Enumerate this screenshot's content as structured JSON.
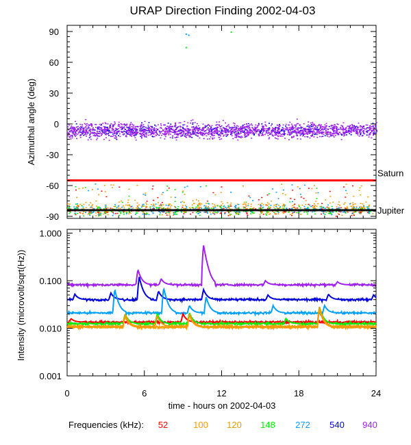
{
  "chart_data": [
    {
      "type": "scatter",
      "title": "URAP Direction Finding  2002-04-03",
      "xlabel": "",
      "ylabel": "Azimuthal angle (deg)",
      "xlim": [
        0,
        24
      ],
      "ylim": [
        -92,
        96
      ],
      "yticks": [
        90,
        60,
        30,
        0,
        -30,
        -60,
        -90
      ],
      "ytick_labels": [
        "90",
        "60",
        "30",
        "0",
        "-30",
        "-60",
        "-90"
      ],
      "reference_lines": [
        {
          "name": "Saturn",
          "value": -55,
          "color": "#ff0000"
        },
        {
          "name": "Jupiter",
          "value": -84,
          "color": "#000000"
        }
      ],
      "series": [
        {
          "name": "940",
          "description": "dense band around the center",
          "center": -6,
          "spread": 7,
          "color": "#a020f0"
        },
        {
          "name": "540",
          "description": "band around the center",
          "center": -6,
          "spread": 6,
          "color": "#0000dd"
        },
        {
          "name": "272",
          "description": "clusters near Jupiter line, spike near 9-10h",
          "center": -83,
          "spread": 5,
          "color": "#00a0ff"
        },
        {
          "name": "148",
          "description": "clusters near Jupiter line",
          "center": -84,
          "spread": 5,
          "color": "#00ee00"
        },
        {
          "name": "120",
          "description": "clusters near Jupiter line",
          "center": -82,
          "spread": 6,
          "color": "#e0a000"
        },
        {
          "name": "100",
          "description": "clusters near Jupiter line",
          "center": -82,
          "spread": 6,
          "color": "#ff9900"
        },
        {
          "name": "52",
          "description": "sparse near Jupiter line",
          "center": -84,
          "spread": 4,
          "color": "#ff0000"
        }
      ]
    },
    {
      "type": "line",
      "title": "",
      "xlabel": "time - hours on 2002-04-03",
      "ylabel": "Intensity (microvolt/sqrt(Hz))",
      "xscale": "linear",
      "yscale": "log",
      "xlim": [
        0,
        24
      ],
      "ylim": [
        0.001,
        1.2
      ],
      "xticks": [
        0,
        6,
        12,
        18,
        24
      ],
      "xtick_labels": [
        "0",
        "6",
        "12",
        "18",
        "24"
      ],
      "yticks": [
        1.0,
        0.1,
        0.01,
        0.001
      ],
      "ytick_labels": [
        "1.000",
        "0.100",
        "0.010",
        "0.001"
      ],
      "series": [
        {
          "name": "940",
          "baseline": 0.082,
          "color": "#a020f0",
          "bursts": [
            {
              "t": 5.5,
              "peak": 0.17
            },
            {
              "t": 7.3,
              "peak": 0.11
            },
            {
              "t": 10.6,
              "peak": 0.55
            },
            {
              "t": 15.4,
              "peak": 0.1
            },
            {
              "t": 21.0,
              "peak": 0.095
            }
          ]
        },
        {
          "name": "540",
          "baseline": 0.04,
          "color": "#0000dd",
          "bursts": [
            {
              "t": 0.6,
              "peak": 0.052
            },
            {
              "t": 3.4,
              "peak": 0.055
            },
            {
              "t": 5.6,
              "peak": 0.12
            },
            {
              "t": 7.1,
              "peak": 0.06
            },
            {
              "t": 10.6,
              "peak": 0.065
            },
            {
              "t": 15.6,
              "peak": 0.05
            },
            {
              "t": 20.3,
              "peak": 0.052
            },
            {
              "t": 23.8,
              "peak": 0.05
            }
          ]
        },
        {
          "name": "272",
          "baseline": 0.021,
          "color": "#00a0ff",
          "bursts": [
            {
              "t": 3.7,
              "peak": 0.065
            },
            {
              "t": 7.5,
              "peak": 0.07
            },
            {
              "t": 9.5,
              "peak": 0.03
            },
            {
              "t": 10.8,
              "peak": 0.045
            },
            {
              "t": 16.0,
              "peak": 0.03
            },
            {
              "t": 20.0,
              "peak": 0.03
            }
          ]
        },
        {
          "name": "52",
          "baseline": 0.0135,
          "color": "#ff0000",
          "bursts": [
            {
              "t": 0.3,
              "peak": 0.016
            },
            {
              "t": 9.0,
              "peak": 0.02
            }
          ]
        },
        {
          "name": "148",
          "baseline": 0.0125,
          "color": "#00ee00",
          "bursts": [
            {
              "t": 4.5,
              "peak": 0.02
            },
            {
              "t": 7.0,
              "peak": 0.02
            },
            {
              "t": 9.5,
              "peak": 0.021
            },
            {
              "t": 17.0,
              "peak": 0.016
            },
            {
              "t": 19.6,
              "peak": 0.028
            }
          ]
        },
        {
          "name": "120",
          "baseline": 0.011,
          "color": "#e0a000",
          "bursts": [
            {
              "t": 4.5,
              "peak": 0.02
            },
            {
              "t": 7.0,
              "peak": 0.018
            },
            {
              "t": 9.5,
              "peak": 0.02
            },
            {
              "t": 19.6,
              "peak": 0.028
            }
          ]
        },
        {
          "name": "100",
          "baseline": 0.0105,
          "color": "#ff9900",
          "bursts": [
            {
              "t": 4.5,
              "peak": 0.018
            },
            {
              "t": 9.5,
              "peak": 0.019
            },
            {
              "t": 19.6,
              "peak": 0.025
            }
          ]
        }
      ]
    }
  ],
  "legend": {
    "label": "Frequencies (kHz):",
    "items": [
      {
        "value": "52",
        "color": "#ff0000"
      },
      {
        "value": "100",
        "color": "#ff9900"
      },
      {
        "value": "120",
        "color": "#e0a000"
      },
      {
        "value": "148",
        "color": "#00ee00"
      },
      {
        "value": "272",
        "color": "#00a0ff"
      },
      {
        "value": "540",
        "color": "#0000dd"
      },
      {
        "value": "940",
        "color": "#a020f0"
      }
    ]
  }
}
